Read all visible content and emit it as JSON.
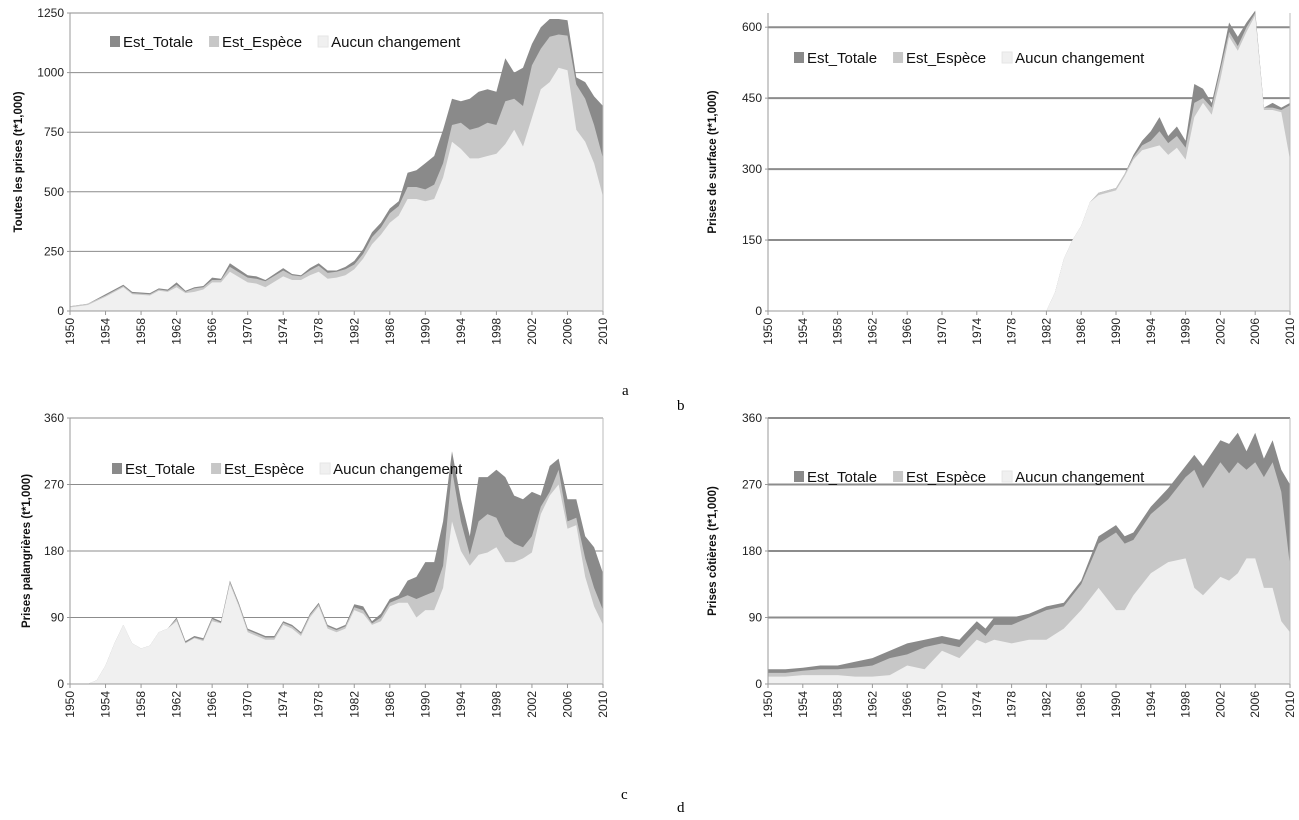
{
  "colors": {
    "est_totale": "#8a8a8a",
    "est_espece": "#c7c7c7",
    "aucun_changement": "#f0f0f0",
    "gridline": "#8c8c8c",
    "axis": "#999999"
  },
  "panel_letters": {
    "a": "a",
    "b": "b",
    "c": "c",
    "d": "d"
  },
  "chart_data": [
    {
      "id": "a",
      "type": "area",
      "stacked": false,
      "title": "",
      "xlabel": "",
      "ylabel": "Toutes les prises (t*1,000)",
      "ylim": [
        0,
        1250
      ],
      "yticks": [
        0,
        250,
        500,
        750,
        1000,
        1250
      ],
      "xticks": [
        1950,
        1954,
        1958,
        1962,
        1966,
        1970,
        1974,
        1978,
        1982,
        1986,
        1990,
        1994,
        1998,
        2002,
        2006,
        2010
      ],
      "grid": true,
      "legend_position": "top-left",
      "x": [
        1950,
        1952,
        1954,
        1956,
        1957,
        1959,
        1960,
        1961,
        1962,
        1963,
        1964,
        1965,
        1966,
        1967,
        1968,
        1970,
        1971,
        1972,
        1974,
        1975,
        1976,
        1977,
        1978,
        1979,
        1980,
        1981,
        1982,
        1983,
        1984,
        1985,
        1986,
        1987,
        1988,
        1989,
        1990,
        1991,
        1992,
        1993,
        1994,
        1995,
        1996,
        1997,
        1998,
        1999,
        2000,
        2001,
        2002,
        2003,
        2004,
        2005,
        2006,
        2007,
        2008,
        2009,
        2010
      ],
      "series": [
        {
          "name": "Est_Totale",
          "values": [
            20,
            30,
            70,
            110,
            80,
            75,
            95,
            90,
            120,
            85,
            100,
            105,
            140,
            135,
            200,
            150,
            145,
            130,
            180,
            155,
            150,
            180,
            200,
            170,
            170,
            185,
            210,
            260,
            330,
            370,
            430,
            460,
            580,
            590,
            620,
            650,
            760,
            890,
            880,
            890,
            920,
            930,
            920,
            1060,
            1000,
            1020,
            1120,
            1190,
            1225,
            1225,
            1220,
            980,
            960,
            900,
            860
          ]
        },
        {
          "name": "Est_Espèce",
          "values": [
            20,
            30,
            65,
            105,
            75,
            70,
            90,
            85,
            110,
            80,
            95,
            100,
            130,
            130,
            185,
            140,
            135,
            125,
            170,
            150,
            145,
            170,
            190,
            160,
            165,
            175,
            195,
            240,
            310,
            350,
            410,
            440,
            520,
            520,
            510,
            530,
            620,
            780,
            790,
            760,
            770,
            790,
            780,
            880,
            890,
            860,
            1030,
            1100,
            1150,
            1160,
            1155,
            950,
            890,
            780,
            640
          ]
        },
        {
          "name": "Aucun changement",
          "values": [
            15,
            25,
            60,
            100,
            70,
            65,
            85,
            80,
            100,
            75,
            80,
            90,
            120,
            120,
            165,
            120,
            115,
            100,
            145,
            130,
            130,
            150,
            165,
            135,
            140,
            150,
            175,
            220,
            280,
            320,
            370,
            400,
            470,
            470,
            460,
            470,
            560,
            710,
            680,
            640,
            640,
            650,
            660,
            700,
            760,
            690,
            810,
            930,
            960,
            1020,
            1010,
            760,
            710,
            620,
            480
          ]
        }
      ]
    },
    {
      "id": "b",
      "type": "area",
      "stacked": false,
      "title": "",
      "xlabel": "",
      "ylabel": "Prises de surface (t*1,000)",
      "ylim": [
        0,
        630
      ],
      "yticks": [
        0,
        150,
        300,
        450,
        600
      ],
      "xticks": [
        1950,
        1954,
        1958,
        1962,
        1966,
        1970,
        1974,
        1978,
        1982,
        1986,
        1990,
        1994,
        1998,
        2002,
        2006,
        2010
      ],
      "grid": true,
      "legend_position": "top-left",
      "x": [
        1950,
        1982,
        1983,
        1984,
        1985,
        1986,
        1987,
        1988,
        1989,
        1990,
        1991,
        1992,
        1993,
        1994,
        1995,
        1996,
        1997,
        1998,
        1999,
        2000,
        2001,
        2002,
        2003,
        2004,
        2005,
        2006,
        2007,
        2008,
        2009,
        2010
      ],
      "series": [
        {
          "name": "Est_Totale",
          "values": [
            0,
            0,
            40,
            110,
            150,
            180,
            230,
            250,
            255,
            260,
            290,
            330,
            360,
            380,
            410,
            370,
            390,
            360,
            480,
            470,
            440,
            520,
            610,
            580,
            610,
            635,
            430,
            440,
            430,
            440
          ]
        },
        {
          "name": "Est_Espèce",
          "values": [
            0,
            0,
            40,
            110,
            150,
            180,
            230,
            250,
            255,
            260,
            290,
            325,
            350,
            360,
            380,
            355,
            370,
            345,
            440,
            450,
            430,
            510,
            590,
            560,
            600,
            630,
            430,
            430,
            425,
            435
          ]
        },
        {
          "name": "Aucun changement",
          "values": [
            0,
            0,
            40,
            110,
            150,
            180,
            230,
            245,
            250,
            255,
            285,
            320,
            340,
            345,
            350,
            330,
            345,
            320,
            410,
            440,
            415,
            490,
            580,
            550,
            590,
            625,
            425,
            425,
            420,
            320
          ]
        }
      ]
    },
    {
      "id": "c",
      "type": "area",
      "stacked": false,
      "title": "",
      "xlabel": "",
      "ylabel": "Prises palangrières (t*1,000)",
      "ylim": [
        0,
        360
      ],
      "yticks": [
        0,
        90,
        180,
        270,
        360
      ],
      "xticks": [
        1950,
        1954,
        1958,
        1962,
        1966,
        1970,
        1974,
        1978,
        1982,
        1986,
        1990,
        1994,
        1998,
        2002,
        2006,
        2010
      ],
      "grid": true,
      "legend_position": "top-left",
      "x": [
        1950,
        1952,
        1953,
        1954,
        1955,
        1956,
        1957,
        1958,
        1959,
        1960,
        1961,
        1962,
        1963,
        1964,
        1965,
        1966,
        1967,
        1968,
        1969,
        1970,
        1971,
        1972,
        1973,
        1974,
        1975,
        1976,
        1977,
        1978,
        1979,
        1980,
        1981,
        1982,
        1983,
        1984,
        1985,
        1986,
        1987,
        1988,
        1989,
        1990,
        1991,
        1992,
        1993,
        1994,
        1995,
        1996,
        1997,
        1998,
        1999,
        2000,
        2001,
        2002,
        2003,
        2004,
        2005,
        2006,
        2007,
        2008,
        2009,
        2010
      ],
      "series": [
        {
          "name": "Est_Totale",
          "values": [
            0,
            0,
            5,
            25,
            55,
            80,
            55,
            48,
            52,
            70,
            75,
            90,
            58,
            65,
            62,
            90,
            85,
            140,
            110,
            75,
            70,
            65,
            65,
            85,
            80,
            70,
            95,
            110,
            80,
            75,
            80,
            108,
            105,
            85,
            95,
            115,
            120,
            140,
            145,
            165,
            165,
            220,
            315,
            250,
            200,
            280,
            280,
            290,
            280,
            255,
            250,
            260,
            255,
            295,
            305,
            250,
            250,
            200,
            185,
            150
          ]
        },
        {
          "name": "Est_Espèce",
          "values": [
            0,
            0,
            5,
            25,
            55,
            80,
            55,
            48,
            52,
            70,
            75,
            88,
            56,
            63,
            60,
            88,
            83,
            138,
            108,
            73,
            68,
            63,
            63,
            83,
            78,
            68,
            93,
            108,
            78,
            73,
            78,
            104,
            100,
            82,
            90,
            110,
            115,
            120,
            115,
            120,
            125,
            160,
            290,
            220,
            175,
            220,
            230,
            225,
            200,
            190,
            185,
            200,
            240,
            260,
            290,
            220,
            225,
            170,
            130,
            100
          ]
        },
        {
          "name": "Aucun changement",
          "values": [
            0,
            0,
            5,
            25,
            55,
            80,
            55,
            48,
            52,
            70,
            75,
            85,
            55,
            62,
            58,
            85,
            82,
            135,
            105,
            70,
            65,
            60,
            60,
            80,
            75,
            65,
            90,
            105,
            75,
            70,
            75,
            100,
            95,
            80,
            85,
            105,
            110,
            110,
            90,
            100,
            100,
            130,
            220,
            180,
            160,
            175,
            178,
            185,
            165,
            165,
            170,
            178,
            230,
            255,
            270,
            210,
            215,
            145,
            105,
            80
          ]
        }
      ]
    },
    {
      "id": "d",
      "type": "area",
      "stacked": false,
      "title": "",
      "xlabel": "",
      "ylabel": "Prises côtières (t*1,000)",
      "ylim": [
        0,
        360
      ],
      "yticks": [
        0,
        90,
        180,
        270,
        360
      ],
      "xticks": [
        1950,
        1954,
        1958,
        1962,
        1966,
        1970,
        1974,
        1978,
        1982,
        1986,
        1990,
        1994,
        1998,
        2002,
        2006,
        2010
      ],
      "grid": true,
      "legend_position": "top-left",
      "x": [
        1950,
        1952,
        1954,
        1956,
        1958,
        1960,
        1962,
        1964,
        1966,
        1968,
        1970,
        1972,
        1974,
        1975,
        1976,
        1978,
        1980,
        1982,
        1984,
        1986,
        1988,
        1990,
        1991,
        1992,
        1994,
        1996,
        1998,
        1999,
        2000,
        2002,
        2003,
        2004,
        2005,
        2006,
        2007,
        2008,
        2009,
        2010
      ],
      "series": [
        {
          "name": "Est_Totale",
          "values": [
            20,
            20,
            22,
            25,
            25,
            30,
            35,
            45,
            55,
            60,
            65,
            60,
            85,
            75,
            90,
            90,
            95,
            105,
            110,
            140,
            200,
            215,
            200,
            205,
            240,
            265,
            295,
            310,
            295,
            330,
            325,
            340,
            315,
            340,
            305,
            330,
            290,
            270
          ]
        },
        {
          "name": "Est_Espèce",
          "values": [
            15,
            15,
            18,
            20,
            20,
            22,
            25,
            35,
            40,
            50,
            55,
            50,
            75,
            65,
            80,
            80,
            90,
            100,
            105,
            135,
            190,
            205,
            190,
            195,
            230,
            250,
            280,
            290,
            265,
            300,
            285,
            300,
            290,
            300,
            280,
            300,
            260,
            160
          ]
        },
        {
          "name": "Aucun changement",
          "values": [
            10,
            10,
            12,
            12,
            12,
            10,
            10,
            12,
            25,
            20,
            45,
            35,
            60,
            55,
            60,
            55,
            60,
            60,
            75,
            100,
            130,
            100,
            100,
            120,
            150,
            165,
            170,
            130,
            120,
            145,
            140,
            150,
            170,
            170,
            130,
            130,
            85,
            70
          ]
        }
      ]
    }
  ]
}
